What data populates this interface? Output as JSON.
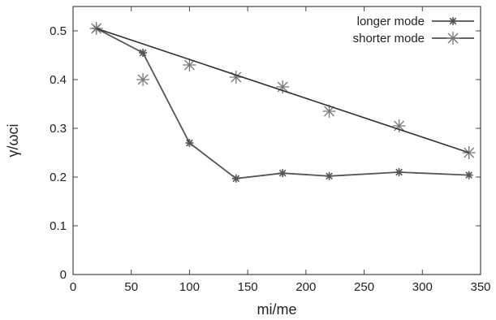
{
  "chart_data": {
    "type": "line",
    "xlabel": "mi/me",
    "ylabel": "γ/ωci",
    "xlim": [
      0,
      350
    ],
    "ylim": [
      0,
      0.55
    ],
    "xticks": [
      0,
      50,
      100,
      150,
      200,
      250,
      300,
      350
    ],
    "yticks": [
      0,
      0.1,
      0.2,
      0.3,
      0.4,
      0.5
    ],
    "xtick_labels": [
      "0",
      "50",
      "100",
      "150",
      "200",
      "250",
      "300",
      "350"
    ],
    "ytick_labels": [
      "0",
      "0.1",
      "0.2",
      "0.3",
      "0.4",
      "0.5"
    ],
    "grid": false,
    "legend_position": "top-right",
    "series": [
      {
        "name": "longer mode",
        "color": "#555555",
        "marker": "small-asterisk",
        "style": "line-with-markers",
        "x": [
          20,
          60,
          100,
          140,
          180,
          220,
          280,
          340
        ],
        "y": [
          0.505,
          0.455,
          0.27,
          0.197,
          0.208,
          0.202,
          0.21,
          0.204
        ]
      },
      {
        "name": "shorter mode",
        "color": "#777777",
        "marker": "large-asterisk",
        "style": "points",
        "x": [
          20,
          60,
          100,
          140,
          180,
          220,
          280,
          340
        ],
        "y": [
          0.505,
          0.4,
          0.43,
          0.405,
          0.385,
          0.335,
          0.305,
          0.25
        ]
      },
      {
        "name": "",
        "color": "#333333",
        "marker": "none",
        "style": "line",
        "x": [
          20,
          340
        ],
        "y": [
          0.505,
          0.25
        ]
      }
    ]
  }
}
